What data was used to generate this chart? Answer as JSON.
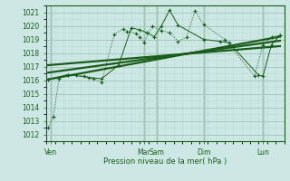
{
  "bg_color": "#cde8e4",
  "grid_major_color": "#a8c8c4",
  "grid_minor_color": "#bcd8d4",
  "line_color": "#1a5c1a",
  "xlabel": "Pression niveau de la mer( hPa )",
  "ylim": [
    1011.5,
    1021.5
  ],
  "yticks": [
    1012,
    1013,
    1014,
    1015,
    1016,
    1017,
    1018,
    1019,
    1020,
    1021
  ],
  "xlim": [
    0,
    28
  ],
  "xtick_labels": [
    "Ven",
    "Mar",
    "Sam",
    "Dim",
    "Lun"
  ],
  "xtick_positions": [
    0.5,
    11.5,
    13.0,
    18.5,
    25.5
  ],
  "day_lines_x": [
    0.5,
    11.5,
    13.0,
    18.5,
    25.5
  ],
  "series1_x": [
    0.2,
    0.8,
    1.5,
    2.5,
    3.5,
    4.5,
    5.5,
    6.5,
    8.0,
    9.0,
    9.5,
    10.5,
    11.0,
    11.5,
    12.5,
    13.5,
    14.5,
    15.5,
    16.5,
    17.5,
    18.5,
    21.0,
    24.5,
    25.5,
    26.5,
    27.5
  ],
  "series1_y": [
    1012.5,
    1013.3,
    1016.1,
    1016.4,
    1016.4,
    1016.3,
    1016.1,
    1015.85,
    1019.4,
    1019.75,
    1019.6,
    1019.45,
    1019.2,
    1018.8,
    1020.0,
    1019.65,
    1019.5,
    1018.85,
    1019.15,
    1021.1,
    1020.1,
    1019.0,
    1016.3,
    1018.6,
    1019.2,
    1019.3
  ],
  "series2_x": [
    0.2,
    2.5,
    5.0,
    6.5,
    8.5,
    10.0,
    11.0,
    11.8,
    12.7,
    13.5,
    14.5,
    15.5,
    18.5,
    20.5,
    21.5,
    25.0,
    25.5,
    26.5,
    27.5
  ],
  "series2_y": [
    1016.05,
    1016.4,
    1016.2,
    1016.1,
    1017.1,
    1019.85,
    1019.7,
    1019.5,
    1019.2,
    1019.95,
    1021.15,
    1020.05,
    1019.0,
    1018.85,
    1018.75,
    1016.35,
    1016.3,
    1018.6,
    1019.3
  ],
  "trend1_x": [
    0.2,
    27.5
  ],
  "trend1_y": [
    1016.05,
    1019.2
  ],
  "trend2_x": [
    0.2,
    27.5
  ],
  "trend2_y": [
    1016.55,
    1018.9
  ],
  "trend3_x": [
    0.2,
    27.5
  ],
  "trend3_y": [
    1017.1,
    1018.5
  ]
}
